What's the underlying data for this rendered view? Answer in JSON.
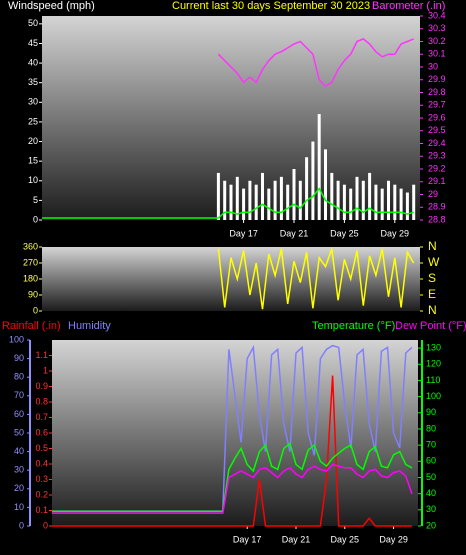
{
  "chart_data": [
    {
      "type": "line",
      "title": "Current last 30 days September 30 2023",
      "y_label": "Windspeed (mph)",
      "y2_label": "Barometer (.in)",
      "x": [
        1,
        15,
        15.5,
        16,
        16.5,
        17,
        17.5,
        18,
        18.5,
        19,
        19.5,
        20,
        20.5,
        21,
        21.5,
        22,
        22.5,
        23,
        23.5,
        24,
        24.5,
        25,
        25.5,
        26,
        26.5,
        27,
        27.5,
        28,
        28.5,
        29,
        29.5,
        30,
        30.5
      ],
      "xlim": [
        1,
        31
      ],
      "xticks": [
        {
          "value": 17,
          "label": "Day 17"
        },
        {
          "value": 21,
          "label": "Day 21"
        },
        {
          "value": 25,
          "label": "Day 25"
        },
        {
          "value": 29,
          "label": "Day 29"
        }
      ],
      "ylim": [
        0,
        52
      ],
      "yticks": [
        0,
        5,
        10,
        15,
        20,
        25,
        30,
        35,
        40,
        45,
        50
      ],
      "ytick_color": "#ffffff",
      "y2lim": [
        28.8,
        30.4
      ],
      "y2ticks": [
        28.8,
        28.9,
        29,
        29.1,
        29.2,
        29.3,
        29.4,
        29.5,
        29.6,
        29.7,
        29.8,
        29.9,
        30,
        30.1,
        30.2,
        30.3,
        30.4
      ],
      "y2tick_color": "#ff33ff",
      "series": [
        {
          "type": "bar",
          "color": "#ffffff",
          "values": [
            null,
            12,
            10,
            9,
            11,
            8,
            10,
            9,
            12,
            8,
            10,
            11,
            9,
            13,
            10,
            16,
            20,
            27,
            18,
            12,
            10,
            9,
            8,
            11,
            10,
            12,
            9,
            8,
            10,
            9,
            8,
            7,
            9
          ]
        },
        {
          "type": "line",
          "color": "#00ff00",
          "values": [
            0.5,
            0.5,
            2,
            2,
            1.5,
            2,
            2,
            3,
            4,
            3,
            2,
            2,
            3,
            4,
            3,
            5,
            6,
            8,
            5,
            4,
            3,
            2,
            2,
            3,
            2,
            3,
            2,
            2,
            2,
            2,
            2,
            1.5,
            2
          ]
        },
        {
          "type": "line",
          "color": "#ff33ff",
          "axis": "y2",
          "values": [
            null,
            30.1,
            30.05,
            30.0,
            29.95,
            29.88,
            29.92,
            29.88,
            29.98,
            30.05,
            30.1,
            30.12,
            30.15,
            30.18,
            30.2,
            30.15,
            30.1,
            29.9,
            29.85,
            29.88,
            29.98,
            30.05,
            30.1,
            30.2,
            30.22,
            30.18,
            30.12,
            30.08,
            30.1,
            30.1,
            30.18,
            30.2,
            30.22
          ]
        }
      ]
    },
    {
      "type": "line",
      "x": [
        15,
        15.5,
        16,
        16.5,
        17,
        17.5,
        18,
        18.5,
        19,
        19.5,
        20,
        20.5,
        21,
        21.5,
        22,
        22.5,
        23,
        23.5,
        24,
        24.5,
        25,
        25.5,
        26,
        26.5,
        27,
        27.5,
        28,
        28.5,
        29,
        29.5,
        30,
        30.5
      ],
      "xlim": [
        1,
        31
      ],
      "ylim": [
        0,
        360
      ],
      "yticks": [
        0,
        90,
        180,
        270,
        360
      ],
      "ytick_color": "#ffff66",
      "y2lim": [
        0,
        360
      ],
      "y2ticks": [
        {
          "value": 0,
          "label": "N"
        },
        {
          "value": 90,
          "label": "E"
        },
        {
          "value": 180,
          "label": "S"
        },
        {
          "value": 270,
          "label": "W"
        },
        {
          "value": 360,
          "label": "N"
        }
      ],
      "y2tick_color": "#ffff00",
      "series": [
        {
          "type": "line",
          "color": "#ffff00",
          "values": [
            350,
            20,
            300,
            180,
            340,
            90,
            270,
            10,
            320,
            200,
            350,
            40,
            280,
            160,
            330,
            15,
            300,
            250,
            350,
            60,
            290,
            180,
            340,
            30,
            310,
            200,
            350,
            80,
            300,
            20,
            330,
            270
          ]
        }
      ]
    },
    {
      "type": "line",
      "x": [
        1,
        15,
        15.5,
        16,
        16.5,
        17,
        17.5,
        18,
        18.5,
        19,
        19.5,
        20,
        20.5,
        21,
        21.5,
        22,
        22.5,
        23,
        23.5,
        24,
        24.5,
        25,
        25.5,
        26,
        26.5,
        27,
        27.5,
        28,
        28.5,
        29,
        29.5,
        30,
        30.5
      ],
      "xlim": [
        1,
        31
      ],
      "xticks": [
        {
          "value": 17,
          "label": "Day 17"
        },
        {
          "value": 21,
          "label": "Day 21"
        },
        {
          "value": 25,
          "label": "Day 25"
        },
        {
          "value": 29,
          "label": "Day 29"
        }
      ],
      "ylim": [
        0,
        1.2
      ],
      "yticks": [
        0,
        0.1,
        0.2,
        0.3,
        0.4,
        0.5,
        0.6,
        0.7,
        0.8,
        0.9,
        1,
        1.1
      ],
      "ytick_color": "#ff3333",
      "y3lim": [
        0,
        100
      ],
      "y3ticks": [
        0,
        10,
        20,
        30,
        40,
        50,
        60,
        70,
        80,
        90,
        100
      ],
      "y3tick_color": "#9090ff",
      "y2lim": [
        20,
        135
      ],
      "y2ticks": [
        20,
        30,
        40,
        50,
        60,
        70,
        80,
        90,
        100,
        110,
        120,
        130
      ],
      "y2tick_color": "#00ff00",
      "series": [
        {
          "name": "Rainfall (.in)",
          "type": "line",
          "color": "#ff0000",
          "values": [
            0,
            0,
            0,
            0,
            0,
            0,
            0,
            0.3,
            0,
            0,
            0,
            0,
            0,
            0,
            0,
            0,
            0,
            0,
            0.3,
            0.97,
            0,
            0,
            0,
            0,
            0,
            0.05,
            0,
            0,
            0,
            0,
            0,
            0,
            0
          ]
        },
        {
          "name": "Humidity",
          "type": "line",
          "color": "#8080ff",
          "axis": "y3",
          "values": [
            8,
            8,
            95,
            70,
            45,
            90,
            96,
            60,
            40,
            92,
            95,
            55,
            40,
            93,
            96,
            50,
            38,
            90,
            95,
            97,
            96,
            65,
            42,
            92,
            95,
            55,
            40,
            94,
            96,
            50,
            42,
            93,
            96
          ]
        },
        {
          "name": "Temperature (°F)",
          "type": "line",
          "color": "#00ff00",
          "axis": "y2",
          "values": [
            29,
            29,
            55,
            62,
            68,
            58,
            54,
            66,
            70,
            57,
            55,
            68,
            71,
            58,
            55,
            67,
            70,
            60,
            57,
            62,
            65,
            68,
            70,
            58,
            55,
            66,
            69,
            57,
            56,
            64,
            66,
            58,
            56
          ]
        },
        {
          "name": "Dew Point (°F)",
          "type": "line",
          "color": "#ff00ff",
          "axis": "y2",
          "values": [
            28,
            28,
            50,
            52,
            54,
            52,
            50,
            55,
            56,
            53,
            50,
            54,
            56,
            52,
            50,
            55,
            57,
            55,
            54,
            58,
            57,
            56,
            56,
            52,
            50,
            54,
            55,
            51,
            50,
            53,
            54,
            51,
            40
          ]
        }
      ]
    }
  ]
}
